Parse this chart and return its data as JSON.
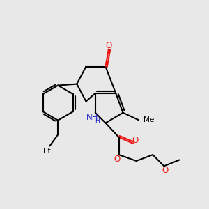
{
  "background_color": "#e8e8e8",
  "bond_color": "#000000",
  "bond_width": 1.5,
  "figsize": [
    3.0,
    3.0
  ],
  "dpi": 100,
  "xlim": [
    0,
    10
  ],
  "ylim": [
    0,
    10
  ],
  "atoms": {
    "N1H": {
      "label": "NH",
      "color": "#2222cc",
      "fontsize": 8.5
    },
    "O_ketone": {
      "label": "O",
      "color": "#ee1111",
      "fontsize": 8.5
    },
    "O_ester_dbl": {
      "label": "O",
      "color": "#ee1111",
      "fontsize": 8.5
    },
    "O_ester_sng": {
      "label": "O",
      "color": "#ee1111",
      "fontsize": 8.5
    },
    "O_ether": {
      "label": "O",
      "color": "#ee1111",
      "fontsize": 8.5
    }
  }
}
